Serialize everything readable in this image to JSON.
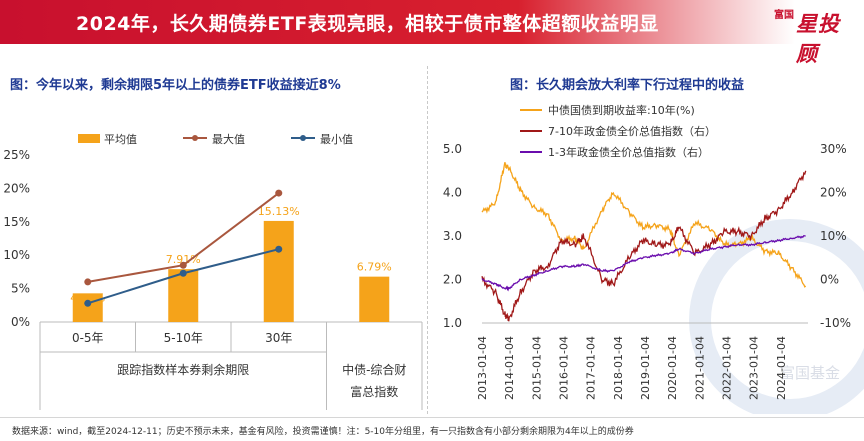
{
  "header": {
    "title": "2024年，长久期债券ETF表现亮眼，相较于债市整体超额收益明显"
  },
  "logo": {
    "main": "星投顾",
    "small": "富国"
  },
  "watermark": "富国基金",
  "footer": {
    "note": "数据来源：wind，截至2024-12-11；历史不预示未来，基金有风险，投资需谨慎！注：5-10年分组里，有一只指数含有小部分剩余期限为4年以上的成份券"
  },
  "colors": {
    "orange": "#f5a31a",
    "brown": "#a9573e",
    "navy": "#2f5d8a",
    "darkred": "#a01818",
    "purple": "#6a0dad",
    "title_blue": "#1f3a93",
    "header_red": "#c8102e"
  },
  "chart_data": [
    {
      "type": "bar",
      "title": "图：今年以来，剩余期限5年以上的债券ETF收益接近8%",
      "categories": [
        "0-5年",
        "5-10年",
        "30年",
        "中债-综合财富总指数"
      ],
      "group_label": "跟踪指数样本券剩余期限",
      "series": [
        {
          "name": "平均值",
          "kind": "bar",
          "values": [
            4.29,
            7.91,
            15.13,
            6.79
          ],
          "labels": [
            "4.29%",
            "7.91%",
            "15.13%",
            "6.79%"
          ]
        },
        {
          "name": "最大值",
          "kind": "line",
          "values": [
            6.0,
            8.5,
            19.3,
            null
          ]
        },
        {
          "name": "最小值",
          "kind": "line",
          "values": [
            2.8,
            7.3,
            10.9,
            null
          ]
        }
      ],
      "yticks": [
        "0%",
        "5%",
        "10%",
        "15%",
        "20%",
        "25%"
      ],
      "ylim": [
        0,
        25
      ],
      "legend_position": "top"
    },
    {
      "type": "line",
      "title": "图：长久期会放大利率下行过程中的收益",
      "x_ticks": [
        "2013-01-04",
        "2014-01-04",
        "2015-01-04",
        "2016-01-04",
        "2017-01-04",
        "2018-01-04",
        "2019-01-04",
        "2020-01-04",
        "2021-01-04",
        "2022-01-04",
        "2023-01-04",
        "2024-01-04"
      ],
      "left_axis": {
        "ticks": [
          "1.0",
          "2.0",
          "3.0",
          "4.0",
          "5.0"
        ],
        "ylim": [
          1.0,
          5.0
        ]
      },
      "right_axis": {
        "ticks": [
          "-10%",
          "0%",
          "10%",
          "20%",
          "30%"
        ],
        "ylim": [
          -10,
          30
        ]
      },
      "series": [
        {
          "name": "中债国债到期收益率:10年(%)",
          "axis": "left",
          "x": [
            "2013-01",
            "2013-07",
            "2013-11",
            "2014-01",
            "2014-06",
            "2014-12",
            "2015-06",
            "2015-12",
            "2016-06",
            "2016-10",
            "2017-06",
            "2017-11",
            "2018-06",
            "2018-12",
            "2019-06",
            "2019-12",
            "2020-04",
            "2020-11",
            "2021-06",
            "2021-12",
            "2022-06",
            "2022-12",
            "2023-06",
            "2023-12",
            "2024-06",
            "2024-12"
          ],
          "values": [
            3.55,
            3.75,
            4.65,
            4.55,
            4.05,
            3.65,
            3.5,
            2.9,
            2.95,
            2.7,
            3.6,
            4.0,
            3.55,
            3.2,
            3.25,
            3.15,
            2.55,
            3.3,
            3.15,
            2.8,
            2.8,
            2.95,
            2.65,
            2.6,
            2.25,
            1.85
          ]
        },
        {
          "name": "7-10年政金债全价总值指数（右）",
          "axis": "right",
          "x": [
            "2013-01",
            "2013-07",
            "2013-11",
            "2014-01",
            "2014-06",
            "2014-12",
            "2015-06",
            "2015-12",
            "2016-06",
            "2016-10",
            "2017-06",
            "2017-11",
            "2018-06",
            "2018-12",
            "2019-06",
            "2019-12",
            "2020-04",
            "2020-11",
            "2021-06",
            "2021-12",
            "2022-06",
            "2022-12",
            "2023-06",
            "2023-12",
            "2024-06",
            "2024-12"
          ],
          "values": [
            0,
            -3,
            -8,
            -9,
            -3,
            2,
            3,
            9,
            8,
            10,
            0,
            -1,
            5,
            9,
            8,
            8,
            12,
            6,
            8,
            11,
            11,
            10,
            14,
            16,
            20,
            25
          ]
        },
        {
          "name": "1-3年政金债全价总值指数（右）",
          "axis": "right",
          "x": [
            "2013-01",
            "2013-07",
            "2013-11",
            "2014-01",
            "2014-06",
            "2014-12",
            "2015-06",
            "2015-12",
            "2016-06",
            "2016-10",
            "2017-06",
            "2017-11",
            "2018-06",
            "2018-12",
            "2019-06",
            "2019-12",
            "2020-04",
            "2020-11",
            "2021-06",
            "2021-12",
            "2022-06",
            "2022-12",
            "2023-06",
            "2023-12",
            "2024-06",
            "2024-12"
          ],
          "values": [
            0,
            -1,
            -2,
            -2,
            0,
            1,
            2,
            3,
            3,
            3.5,
            2,
            2,
            4,
            5,
            5.5,
            6,
            7,
            6,
            7,
            7.5,
            8,
            8,
            8.5,
            9,
            9.5,
            10
          ]
        }
      ],
      "legend_position": "top-left"
    }
  ]
}
